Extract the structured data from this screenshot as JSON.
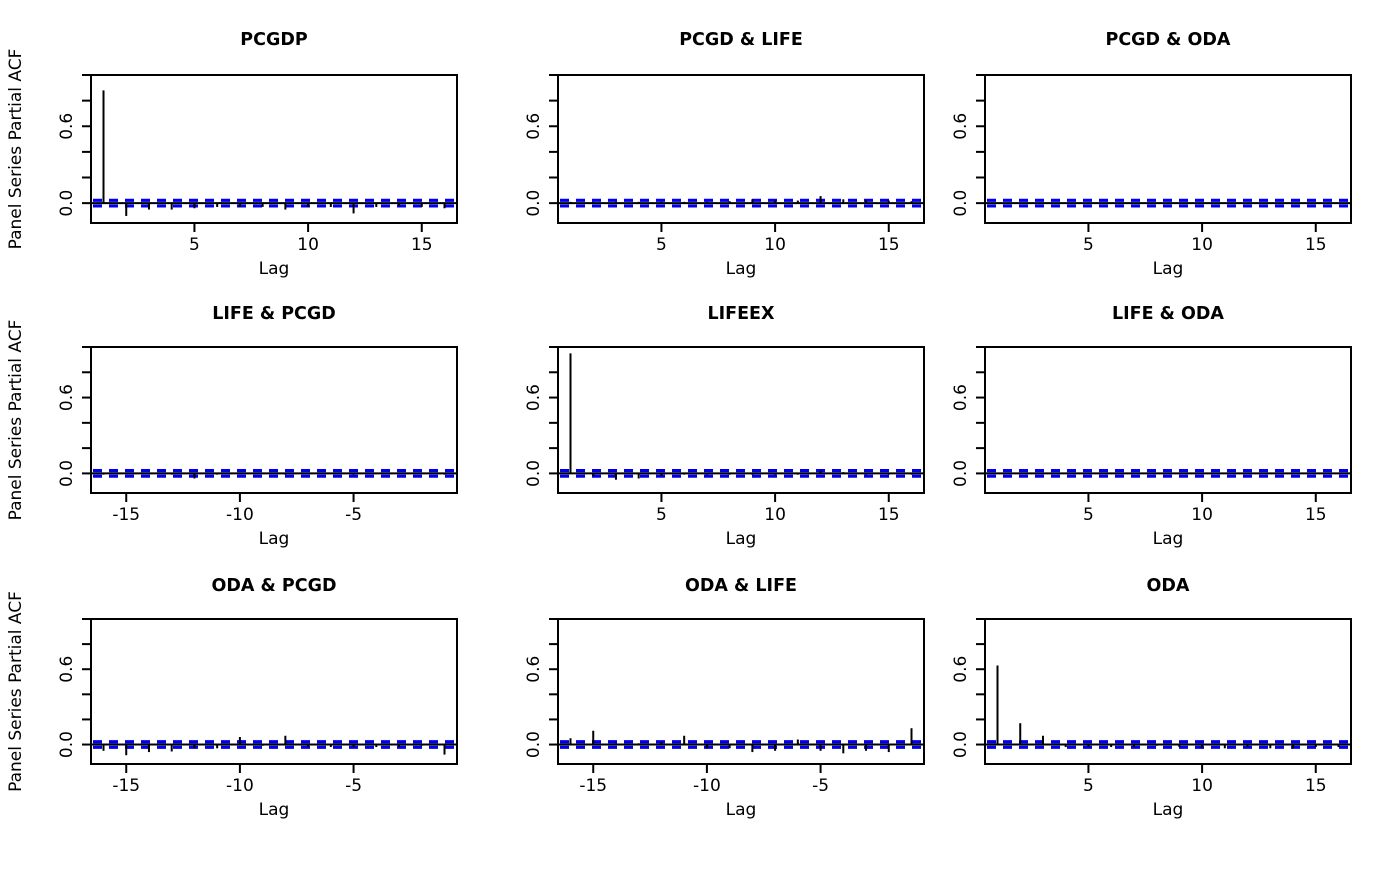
{
  "figure": {
    "ylabel": "Panel Series Partial ACF",
    "xlabel": "Lag",
    "ytick_labels": [
      {
        "value": 0.0,
        "label": "0.0"
      },
      {
        "value": 0.6,
        "label": "0.6"
      }
    ],
    "yticks": [
      0.0,
      0.2,
      0.4,
      0.6,
      0.8,
      1.0
    ],
    "ylim": [
      -0.155,
      1.0
    ],
    "confidence_band": 0.022,
    "colors": {
      "spike": "#000000",
      "confidence_line": "#0000EE",
      "box": "#000000"
    }
  },
  "chart_data": [
    {
      "type": "bar",
      "title": "PCGDP",
      "xlabel": "Lag",
      "ylabel": "Panel Series Partial ACF",
      "x": [
        1,
        2,
        3,
        4,
        5,
        6,
        7,
        8,
        9,
        10,
        11,
        12,
        13,
        14,
        15,
        16
      ],
      "values": [
        0.88,
        -0.1,
        -0.05,
        -0.05,
        -0.04,
        -0.03,
        -0.03,
        -0.03,
        -0.05,
        -0.03,
        -0.03,
        -0.08,
        -0.03,
        -0.02,
        -0.03,
        -0.04
      ],
      "xticks": [
        5,
        10,
        15
      ],
      "ylim": [
        -0.155,
        1.0
      ]
    },
    {
      "type": "bar",
      "title": "PCGD & LIFE",
      "xlabel": "Lag",
      "x": [
        1,
        2,
        3,
        4,
        5,
        6,
        7,
        8,
        9,
        10,
        11,
        12,
        13,
        14,
        15,
        16
      ],
      "values": [
        0.01,
        0.01,
        0.01,
        0.01,
        0.01,
        0.01,
        0.01,
        0.015,
        0.03,
        0.02,
        0.02,
        0.055,
        0.03,
        0.025,
        0.02,
        0.015
      ],
      "xticks": [
        5,
        10,
        15
      ],
      "ylim": [
        -0.155,
        1.0
      ]
    },
    {
      "type": "bar",
      "title": "PCGD & ODA",
      "xlabel": "Lag",
      "x": [
        1,
        2,
        3,
        4,
        5,
        6,
        7,
        8,
        9,
        10,
        11,
        12,
        13,
        14,
        15,
        16
      ],
      "values": [
        0.005,
        0.005,
        0.005,
        0.005,
        0.005,
        0.005,
        0.005,
        0.005,
        0.005,
        0.005,
        0.005,
        0.005,
        0.005,
        0.005,
        0.005,
        0.005
      ],
      "xticks": [
        5,
        10,
        15
      ],
      "ylim": [
        -0.155,
        1.0
      ]
    },
    {
      "type": "bar",
      "title": "LIFE & PCGD",
      "xlabel": "Lag",
      "ylabel": "Panel Series Partial ACF",
      "x": [
        -16,
        -15,
        -14,
        -13,
        -12,
        -11,
        -10,
        -9,
        -8,
        -7,
        -6,
        -5,
        -4,
        -3,
        -2,
        -1
      ],
      "values": [
        -0.01,
        -0.005,
        -0.005,
        -0.01,
        -0.04,
        -0.01,
        -0.005,
        -0.005,
        -0.01,
        -0.005,
        -0.005,
        -0.01,
        -0.005,
        -0.005,
        -0.005,
        -0.01
      ],
      "xticks": [
        -15,
        -10,
        -5
      ],
      "ylim": [
        -0.155,
        1.0
      ]
    },
    {
      "type": "bar",
      "title": "LIFEEX",
      "xlabel": "Lag",
      "x": [
        1,
        2,
        3,
        4,
        5,
        6,
        7,
        8,
        9,
        10,
        11,
        12,
        13,
        14,
        15,
        16
      ],
      "values": [
        0.95,
        -0.02,
        -0.05,
        -0.04,
        -0.02,
        -0.01,
        -0.01,
        -0.01,
        -0.01,
        -0.01,
        -0.01,
        0.02,
        0.01,
        -0.01,
        -0.01,
        -0.01
      ],
      "xticks": [
        5,
        10,
        15
      ],
      "ylim": [
        -0.155,
        1.0
      ]
    },
    {
      "type": "bar",
      "title": "LIFE & ODA",
      "xlabel": "Lag",
      "x": [
        1,
        2,
        3,
        4,
        5,
        6,
        7,
        8,
        9,
        10,
        11,
        12,
        13,
        14,
        15,
        16
      ],
      "values": [
        0.005,
        0.005,
        0.005,
        0.005,
        0.005,
        0.005,
        0.005,
        0.005,
        0.005,
        0.005,
        0.005,
        0.005,
        0.005,
        0.005,
        0.005,
        0.005
      ],
      "xticks": [
        5,
        10,
        15
      ],
      "ylim": [
        -0.155,
        1.0
      ]
    },
    {
      "type": "bar",
      "title": "ODA & PCGD",
      "xlabel": "Lag",
      "ylabel": "Panel Series Partial ACF",
      "x": [
        -16,
        -15,
        -14,
        -13,
        -12,
        -11,
        -10,
        -9,
        -8,
        -7,
        -6,
        -5,
        -4,
        -3,
        -2,
        -1
      ],
      "values": [
        -0.05,
        -0.085,
        -0.06,
        -0.055,
        -0.03,
        -0.03,
        0.06,
        -0.01,
        0.07,
        -0.02,
        -0.02,
        -0.02,
        -0.02,
        -0.02,
        -0.01,
        -0.08
      ],
      "xticks": [
        -15,
        -10,
        -5
      ],
      "ylim": [
        -0.155,
        1.0
      ]
    },
    {
      "type": "bar",
      "title": "ODA & LIFE",
      "xlabel": "Lag",
      "x": [
        -16,
        -15,
        -14,
        -13,
        -12,
        -11,
        -10,
        -9,
        -8,
        -7,
        -6,
        -5,
        -4,
        -3,
        -2,
        -1
      ],
      "values": [
        0.05,
        0.11,
        0.01,
        0.01,
        0.02,
        0.07,
        -0.03,
        -0.03,
        -0.06,
        -0.05,
        0.04,
        -0.05,
        -0.07,
        -0.05,
        -0.06,
        0.13
      ],
      "xticks": [
        -15,
        -10,
        -5
      ],
      "ylim": [
        -0.155,
        1.0
      ]
    },
    {
      "type": "bar",
      "title": "ODA",
      "xlabel": "Lag",
      "x": [
        1,
        2,
        3,
        4,
        5,
        6,
        7,
        8,
        9,
        10,
        11,
        12,
        13,
        14,
        15,
        16
      ],
      "values": [
        0.63,
        0.17,
        0.07,
        -0.02,
        -0.02,
        -0.02,
        -0.02,
        -0.01,
        -0.02,
        -0.03,
        -0.03,
        -0.02,
        -0.03,
        -0.03,
        -0.02,
        -0.02
      ],
      "xticks": [
        5,
        10,
        15
      ],
      "ylim": [
        -0.155,
        1.0
      ]
    }
  ]
}
